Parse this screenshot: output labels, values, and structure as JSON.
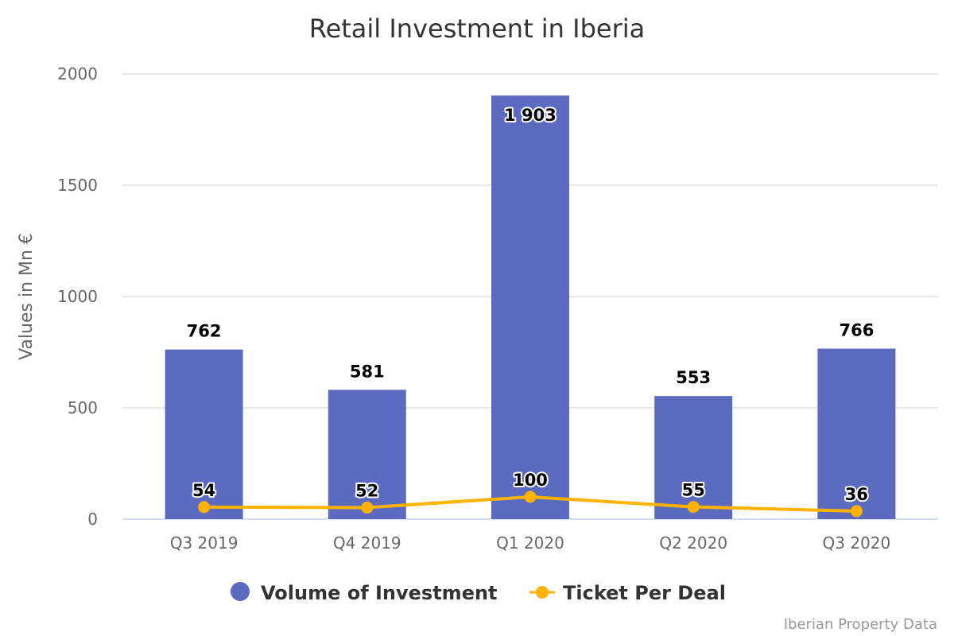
{
  "chart_data": {
    "type": "bar",
    "title": "Retail Investment in Iberia",
    "xlabel": "",
    "ylabel": "Values in Mn €",
    "ylim": [
      0,
      2000
    ],
    "yticks": [
      0,
      500,
      1000,
      1500,
      2000
    ],
    "categories": [
      "Q3 2019",
      "Q4 2019",
      "Q1 2020",
      "Q2 2020",
      "Q3 2020"
    ],
    "series": [
      {
        "name": "Volume of Investment",
        "type": "bar",
        "color": "#5c6bc0",
        "values": [
          762,
          581,
          1903,
          553,
          766
        ],
        "labels": [
          "762",
          "581",
          "1 903",
          "553",
          "766"
        ]
      },
      {
        "name": "Ticket Per Deal",
        "type": "line",
        "color": "#ffb300",
        "values": [
          54,
          52,
          100,
          55,
          36
        ],
        "labels": [
          "54",
          "52",
          "100",
          "55",
          "36"
        ]
      }
    ],
    "grid": true,
    "legend": "bottom-center",
    "credit": "Iberian Property Data"
  }
}
